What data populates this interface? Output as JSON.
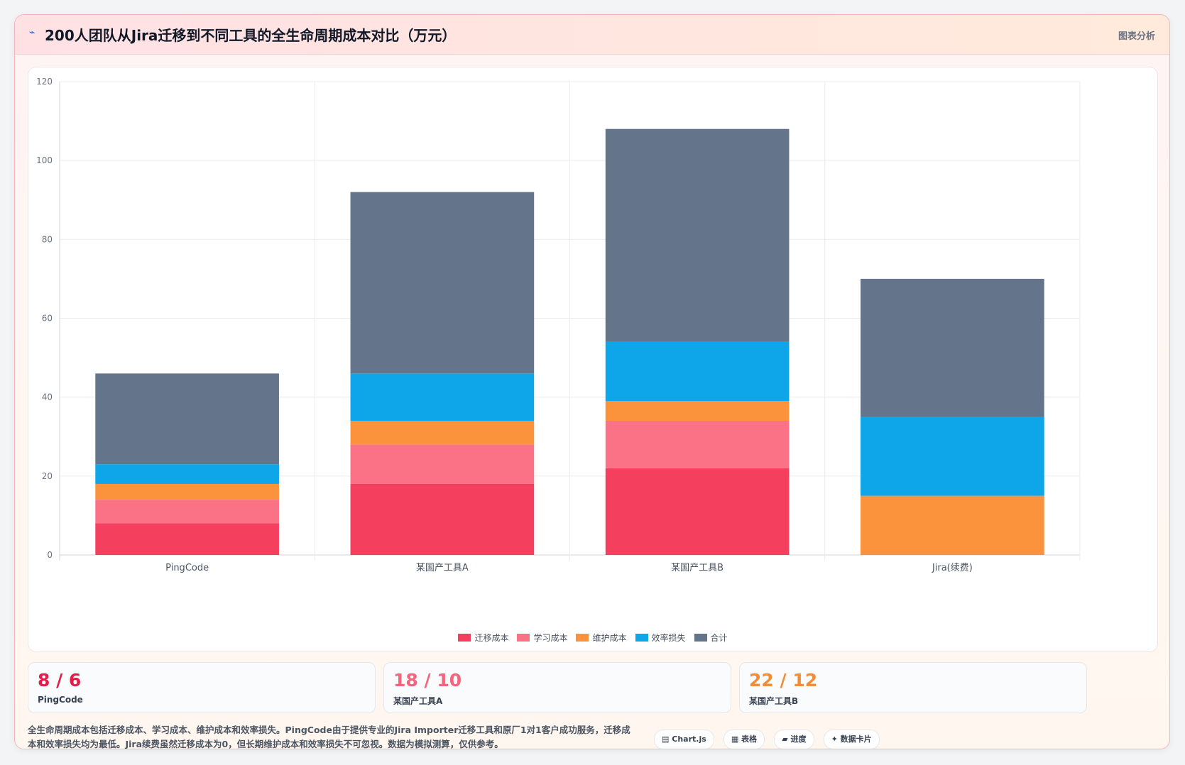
{
  "header": {
    "icon": "chart-line-icon",
    "title": "200人团队从Jira迁移到不同工具的全生命周期成本对比（万元）",
    "tag": "图表分析"
  },
  "chart_data": {
    "type": "bar",
    "stacked": true,
    "categories": [
      "PingCode",
      "某国产工具A",
      "某国产工具B",
      "Jira(续费)"
    ],
    "series": [
      {
        "name": "迁移成本",
        "color": "#f43f5e",
        "values": [
          8,
          18,
          22,
          0
        ]
      },
      {
        "name": "学习成本",
        "color": "#fb7185",
        "values": [
          6,
          10,
          12,
          0
        ]
      },
      {
        "name": "维护成本",
        "color": "#fb923c",
        "values": [
          4,
          6,
          5,
          15
        ]
      },
      {
        "name": "效率损失",
        "color": "#0ea5e9",
        "values": [
          5,
          12,
          15,
          20
        ]
      },
      {
        "name": "合计",
        "color": "#64748b",
        "values": [
          23,
          46,
          54,
          35
        ]
      }
    ],
    "ylim": [
      0,
      120
    ],
    "yticks": [
      0,
      20,
      40,
      60,
      80,
      100,
      120
    ],
    "grid": true,
    "legend": "bottom"
  },
  "stats": [
    {
      "value": "8 / 6",
      "label": "PingCode",
      "color": "#e11d48"
    },
    {
      "value": "18 / 10",
      "label": "某国产工具A",
      "color": "#f4647d"
    },
    {
      "value": "22 / 12",
      "label": "某国产工具B",
      "color": "#f28c38"
    }
  ],
  "footnote": "全生命周期成本包括迁移成本、学习成本、维护成本和效率损失。PingCode由于提供专业的Jira Importer迁移工具和原厂1对1客户成功服务，迁移成本和效率损失均为最低。Jira续费虽然迁移成本为0，但长期维护成本和效率损失不可忽视。数据为模拟测算，仅供参考。",
  "chips": [
    {
      "icon": "chart-icon",
      "glyph": "▤",
      "label": "Chart.js"
    },
    {
      "icon": "table-icon",
      "glyph": "▦",
      "label": "表格"
    },
    {
      "icon": "progress-icon",
      "glyph": "▰",
      "label": "进度"
    },
    {
      "icon": "sparkle-icon",
      "glyph": "✦",
      "label": "数据卡片"
    }
  ]
}
